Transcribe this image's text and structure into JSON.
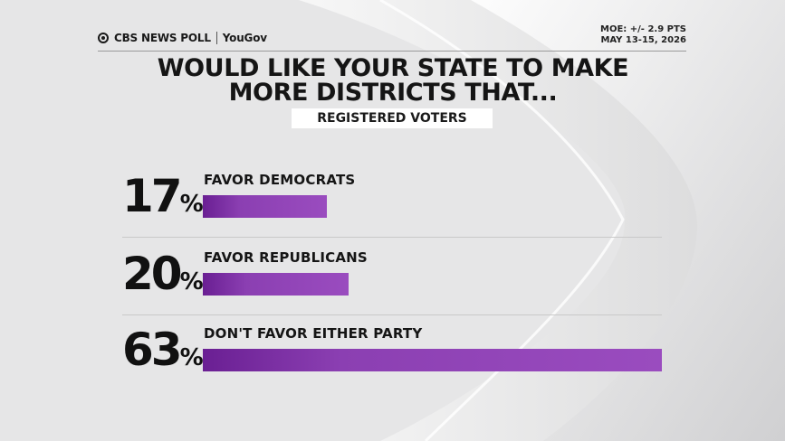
{
  "brand": {
    "cbs": "CBS NEWS POLL",
    "partner": "YouGov"
  },
  "meta": {
    "moe": "MOE: +/- 2.9 PTS",
    "dates": "MAY 13-15, 2026"
  },
  "colors": {
    "bar": "#9a4cbf",
    "bar_dark": "#6a1f93",
    "background": "#e9e9ea"
  },
  "chart_data": {
    "type": "bar",
    "orientation": "horizontal",
    "title": "WOULD LIKE YOUR STATE TO MAKE MORE DISTRICTS THAT...",
    "subtitle": "REGISTERED VOTERS",
    "categories": [
      "FAVOR DEMOCRATS",
      "FAVOR REPUBLICANS",
      "DON'T FAVOR EITHER PARTY"
    ],
    "values": [
      17,
      20,
      63
    ],
    "value_labels": [
      "17",
      "20",
      "63"
    ],
    "unit": "%",
    "xlim": [
      0,
      63
    ],
    "grid": false,
    "legend": "none"
  }
}
